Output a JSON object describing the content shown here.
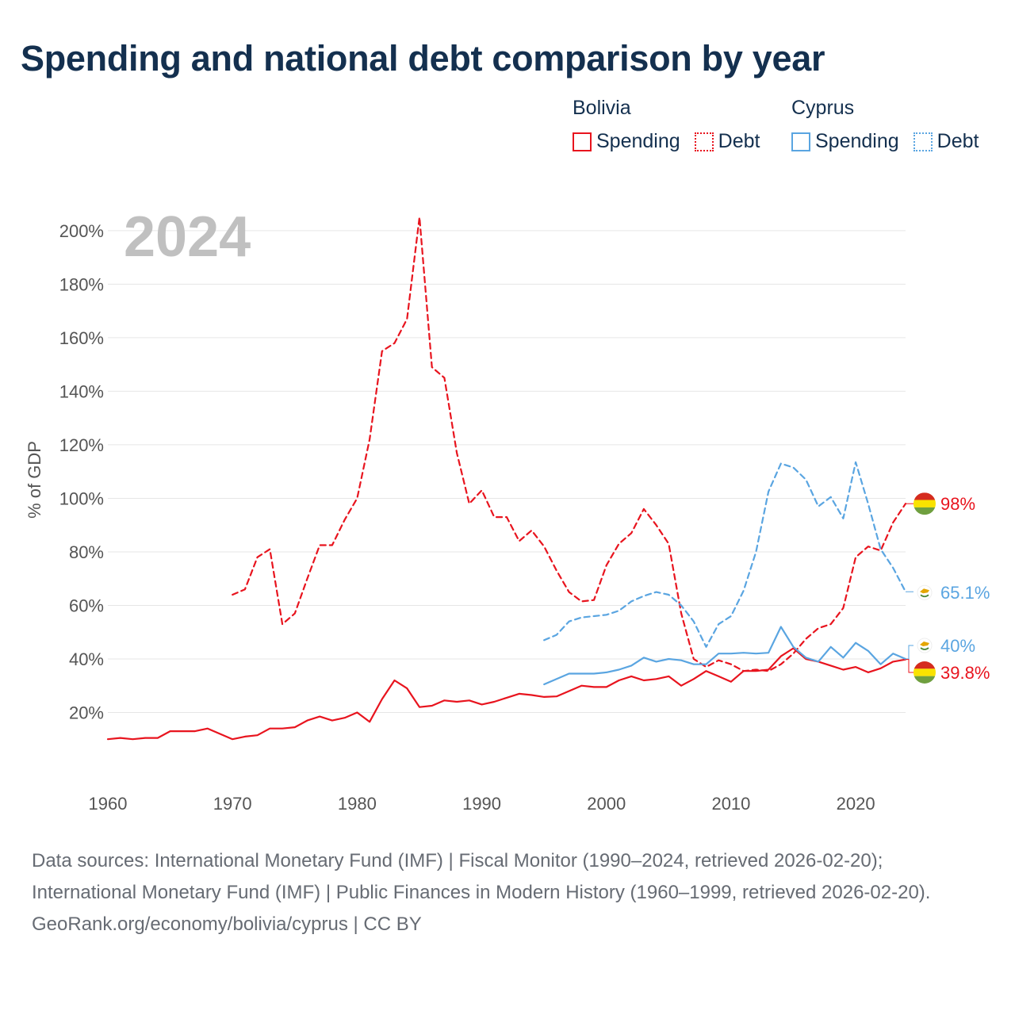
{
  "title": "Spending and national debt comparison by year",
  "legend": {
    "groups": [
      {
        "country": "Bolivia",
        "spending_label": "Spending",
        "debt_label": "Debt"
      },
      {
        "country": "Cyprus",
        "spending_label": "Spending",
        "debt_label": "Debt"
      }
    ]
  },
  "colors": {
    "bolivia": "#e8141e",
    "cyprus": "#5aa5e1",
    "grid": "#e6e6e6",
    "axis_text": "#555555",
    "year_watermark": "#c0c0c0"
  },
  "chart_data": {
    "type": "line",
    "title": "Spending and national debt comparison by year",
    "year_label": "2024",
    "ylabel": "% of GDP",
    "xlim": [
      1960,
      2024
    ],
    "ylim": [
      0,
      205
    ],
    "x_ticks": [
      1960,
      1970,
      1980,
      1990,
      2000,
      2010,
      2020
    ],
    "y_ticks": [
      20,
      40,
      60,
      80,
      100,
      120,
      140,
      160,
      180,
      200
    ],
    "y_tick_labels": [
      "20%",
      "40%",
      "60%",
      "80%",
      "100%",
      "120%",
      "140%",
      "160%",
      "180%",
      "200%"
    ],
    "grid": true,
    "series": [
      {
        "name": "Bolivia Debt",
        "country": "Bolivia",
        "style": "dashed",
        "color": "#e8141e",
        "end_label": "98%",
        "x": [
          1970,
          1971,
          1972,
          1973,
          1974,
          1975,
          1976,
          1977,
          1978,
          1979,
          1980,
          1981,
          1982,
          1983,
          1984,
          1985,
          1986,
          1987,
          1988,
          1989,
          1990,
          1991,
          1992,
          1993,
          1994,
          1995,
          1996,
          1997,
          1998,
          1999,
          2000,
          2001,
          2002,
          2003,
          2004,
          2005,
          2006,
          2007,
          2008,
          2009,
          2010,
          2011,
          2012,
          2013,
          2014,
          2015,
          2016,
          2017,
          2018,
          2019,
          2020,
          2021,
          2022,
          2023,
          2024
        ],
        "values": [
          64,
          66,
          78,
          81,
          53,
          57,
          70,
          82.5,
          82.5,
          92,
          100,
          122,
          155,
          158,
          167,
          205,
          149,
          145,
          117,
          98,
          103,
          93,
          93,
          84,
          88,
          82,
          73,
          65,
          61.5,
          62,
          75,
          83,
          87,
          96,
          90,
          83,
          57,
          40,
          37,
          39.5,
          38,
          35.5,
          36,
          35.5,
          38,
          42,
          47.5,
          51.5,
          53,
          59,
          78,
          82,
          80.5,
          91,
          98
        ]
      },
      {
        "name": "Bolivia Spending",
        "country": "Bolivia",
        "style": "solid",
        "color": "#e8141e",
        "end_label": "39.8%",
        "x": [
          1960,
          1961,
          1962,
          1963,
          1964,
          1965,
          1966,
          1967,
          1968,
          1969,
          1970,
          1971,
          1972,
          1973,
          1974,
          1975,
          1976,
          1977,
          1978,
          1979,
          1980,
          1981,
          1982,
          1983,
          1984,
          1985,
          1986,
          1987,
          1988,
          1989,
          1990,
          1991,
          1992,
          1993,
          1994,
          1995,
          1996,
          1997,
          1998,
          1999,
          2000,
          2001,
          2002,
          2003,
          2004,
          2005,
          2006,
          2007,
          2008,
          2009,
          2010,
          2011,
          2012,
          2013,
          2014,
          2015,
          2016,
          2017,
          2018,
          2019,
          2020,
          2021,
          2022,
          2023,
          2024
        ],
        "values": [
          10,
          10.5,
          10,
          10.5,
          10.5,
          13,
          13,
          13,
          14,
          12,
          10,
          11,
          11.5,
          14,
          14,
          14.5,
          17,
          18.5,
          17,
          18,
          20,
          16.5,
          25,
          32,
          29,
          22,
          22.5,
          24.5,
          24,
          24.5,
          23,
          24,
          25.5,
          27,
          26.5,
          25.8,
          26,
          28,
          30,
          29.5,
          29.5,
          32,
          33.5,
          32,
          32.5,
          33.5,
          30,
          32.5,
          35.5,
          33.5,
          31.5,
          35.5,
          35.5,
          36,
          41,
          44,
          40,
          39,
          37.5,
          36,
          37,
          35,
          36.5,
          39,
          39.8
        ]
      },
      {
        "name": "Cyprus Debt",
        "country": "Cyprus",
        "style": "dashed",
        "color": "#5aa5e1",
        "end_label": "65.1%",
        "x": [
          1995,
          1996,
          1997,
          1998,
          1999,
          2000,
          2001,
          2002,
          2003,
          2004,
          2005,
          2006,
          2007,
          2008,
          2009,
          2010,
          2011,
          2012,
          2013,
          2014,
          2015,
          2016,
          2017,
          2018,
          2019,
          2020,
          2021,
          2022,
          2023,
          2024
        ],
        "values": [
          47,
          49,
          54,
          55.5,
          56,
          56.5,
          58,
          61.5,
          63.5,
          65,
          64,
          60,
          54,
          44.5,
          53,
          56,
          65.5,
          80,
          102.5,
          113,
          111.5,
          107,
          97,
          100.5,
          92.5,
          113.5,
          98,
          81,
          74,
          65.1
        ]
      },
      {
        "name": "Cyprus Spending",
        "country": "Cyprus",
        "style": "solid",
        "color": "#5aa5e1",
        "end_label": "40%",
        "x": [
          1995,
          1996,
          1997,
          1998,
          1999,
          2000,
          2001,
          2002,
          2003,
          2004,
          2005,
          2006,
          2007,
          2008,
          2009,
          2010,
          2011,
          2012,
          2013,
          2014,
          2015,
          2016,
          2017,
          2018,
          2019,
          2020,
          2021,
          2022,
          2023,
          2024
        ],
        "values": [
          30.5,
          32.5,
          34.5,
          34.5,
          34.5,
          35,
          36,
          37.5,
          40.5,
          39,
          40,
          39.5,
          38,
          38,
          42,
          42,
          42.3,
          42,
          42.3,
          52,
          44.5,
          40.5,
          39,
          44.5,
          40.5,
          46,
          43,
          38,
          42,
          40
        ]
      }
    ]
  },
  "footer": {
    "sources": "Data sources: International Monetary Fund (IMF) | Fiscal Monitor (1990–2024, retrieved 2026-02-20); International Monetary Fund (IMF) | Public Finances in Modern History (1960–1999, retrieved 2026-02-20).",
    "credit": "GeoRank.org/economy/bolivia/cyprus | CC BY"
  }
}
